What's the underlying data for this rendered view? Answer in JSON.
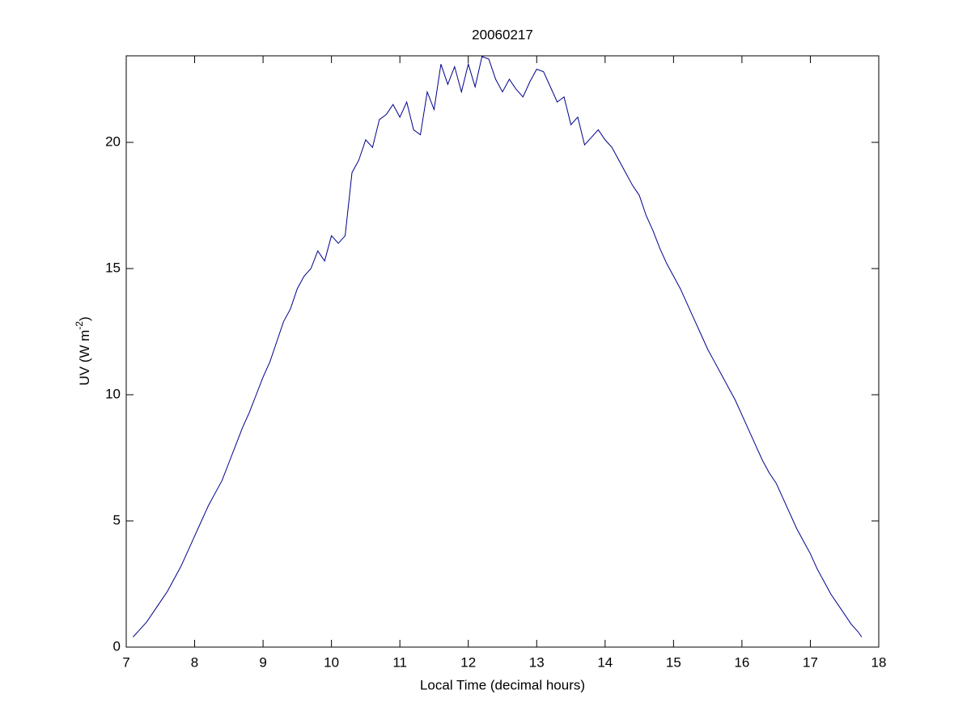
{
  "chart_data": {
    "type": "line",
    "title": "20060217",
    "xlabel": "Local Time (decimal hours)",
    "ylabel": [
      "UV (W m",
      "-2",
      ")"
    ],
    "x": [
      7.1,
      7.2,
      7.3,
      7.4,
      7.5,
      7.6,
      7.7,
      7.8,
      7.9,
      8.0,
      8.1,
      8.2,
      8.3,
      8.4,
      8.5,
      8.6,
      8.7,
      8.8,
      8.9,
      9.0,
      9.1,
      9.2,
      9.3,
      9.4,
      9.5,
      9.6,
      9.7,
      9.8,
      9.9,
      10.0,
      10.1,
      10.2,
      10.3,
      10.4,
      10.5,
      10.6,
      10.7,
      10.8,
      10.9,
      11.0,
      11.1,
      11.2,
      11.3,
      11.4,
      11.5,
      11.6,
      11.7,
      11.8,
      11.9,
      12.0,
      12.1,
      12.2,
      12.3,
      12.4,
      12.5,
      12.6,
      12.7,
      12.8,
      12.9,
      13.0,
      13.1,
      13.2,
      13.3,
      13.4,
      13.5,
      13.6,
      13.7,
      13.8,
      13.9,
      14.0,
      14.1,
      14.2,
      14.3,
      14.4,
      14.5,
      14.6,
      14.7,
      14.8,
      14.9,
      15.0,
      15.1,
      15.2,
      15.3,
      15.4,
      15.5,
      15.6,
      15.7,
      15.8,
      15.9,
      16.0,
      16.1,
      16.2,
      16.3,
      16.4,
      16.5,
      16.6,
      16.7,
      16.8,
      16.9,
      17.0,
      17.1,
      17.2,
      17.3,
      17.4,
      17.5,
      17.6,
      17.7,
      17.75
    ],
    "series": [
      {
        "color": "#00008b",
        "values": [
          0.4,
          0.7,
          1.0,
          1.4,
          1.8,
          2.2,
          2.7,
          3.2,
          3.8,
          4.4,
          5.0,
          5.6,
          6.1,
          6.6,
          7.3,
          8.0,
          8.7,
          9.3,
          10.0,
          10.7,
          11.3,
          12.1,
          12.9,
          13.4,
          14.2,
          14.7,
          15.0,
          15.7,
          15.3,
          16.3,
          16.0,
          16.3,
          18.8,
          19.3,
          20.1,
          19.8,
          20.9,
          21.1,
          21.5,
          21.0,
          21.6,
          20.5,
          20.3,
          22.0,
          21.3,
          23.1,
          22.3,
          23.0,
          22.0,
          23.1,
          22.2,
          23.4,
          23.3,
          22.5,
          22.0,
          22.5,
          22.1,
          21.8,
          22.4,
          22.9,
          22.8,
          22.2,
          21.6,
          21.8,
          20.7,
          21.0,
          19.9,
          20.2,
          20.5,
          20.1,
          19.8,
          19.3,
          18.8,
          18.3,
          17.9,
          17.1,
          16.5,
          15.8,
          15.2,
          14.7,
          14.2,
          13.6,
          13.0,
          12.4,
          11.8,
          11.3,
          10.8,
          10.3,
          9.8,
          9.2,
          8.6,
          8.0,
          7.4,
          6.9,
          6.5,
          5.9,
          5.3,
          4.7,
          4.2,
          3.7,
          3.1,
          2.6,
          2.1,
          1.7,
          1.3,
          0.9,
          0.6,
          0.4
        ]
      }
    ],
    "xlim": [
      7,
      18
    ],
    "xticks": [
      7,
      8,
      9,
      10,
      11,
      12,
      13,
      14,
      15,
      16,
      17,
      18
    ],
    "ylim": [
      0,
      23.43
    ],
    "yticks": [
      0,
      5,
      10,
      15,
      20
    ]
  }
}
